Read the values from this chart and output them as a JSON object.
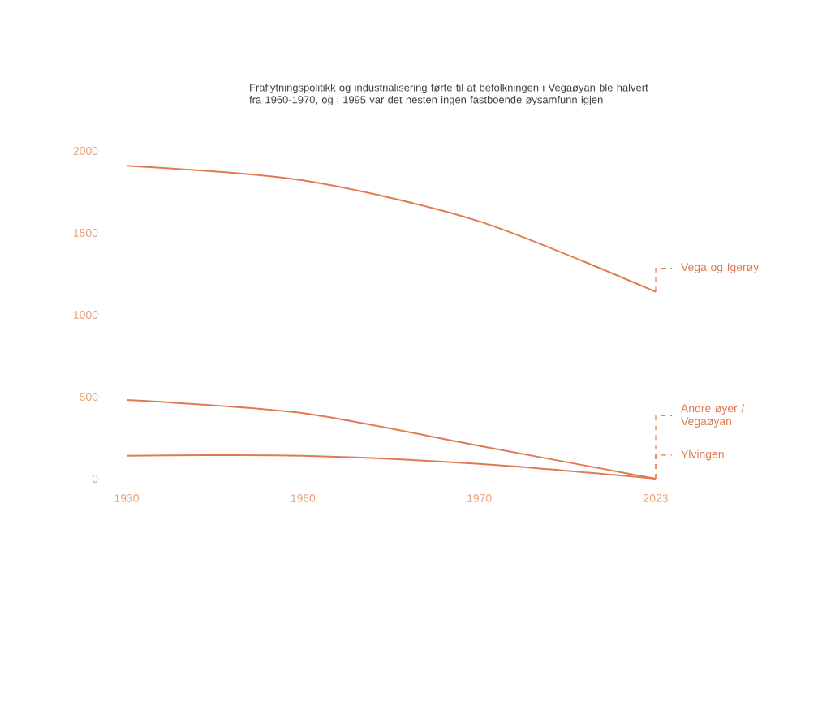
{
  "chart_data": {
    "type": "line",
    "title": "Fraflytningspolitikk og industrialisering førte til at befolkningen i Vegaøyan ble halvert fra 1960-1970, og i 1995 var det nesten ingen fastboende øysamfunn igjen",
    "categories": [
      "1930",
      "1960",
      "1970",
      "2023"
    ],
    "series": [
      {
        "name": "Vega og Igerøy",
        "color": "#e07a52",
        "values": [
          1910,
          1820,
          1570,
          1140
        ]
      },
      {
        "name": "Andre øyer / Vegaøyan",
        "color": "#e07a52",
        "values": [
          480,
          400,
          200,
          0
        ]
      },
      {
        "name": "Ylvingen",
        "color": "#e07a52",
        "values": [
          140,
          140,
          90,
          0
        ]
      }
    ],
    "ylim": [
      0,
      2000
    ],
    "yticks": [
      0,
      500,
      1000,
      1500,
      2000
    ],
    "grid": false,
    "marker": "none",
    "line_style": "solid"
  }
}
